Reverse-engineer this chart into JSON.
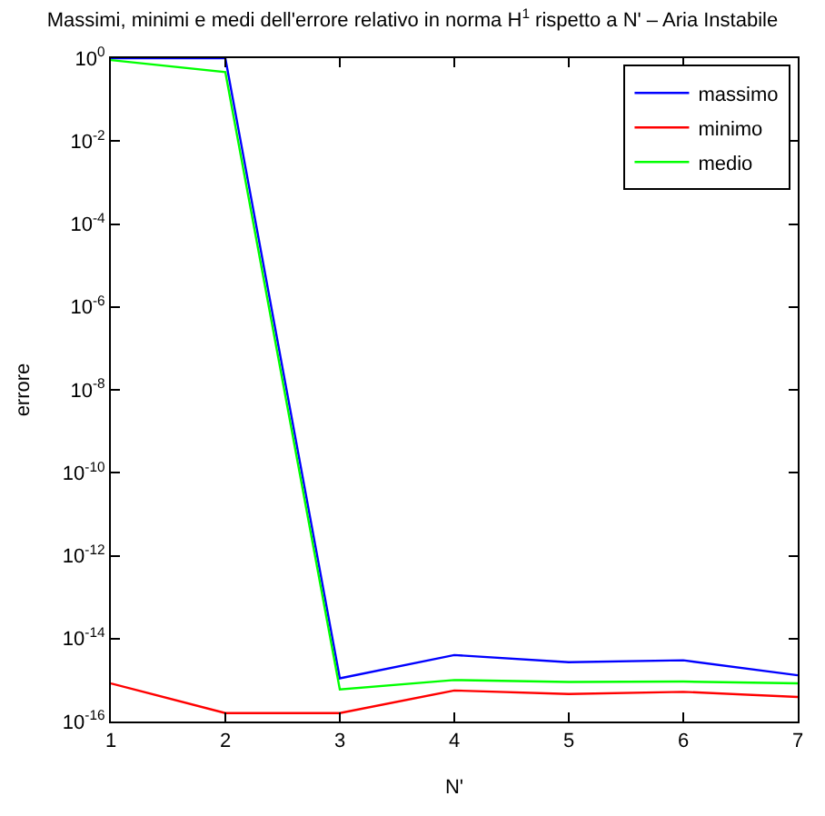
{
  "chart_data": {
    "type": "line",
    "title": "Massimi, minimi e medi dell'errore relativo in norma H$^{1}$ rispetto a N' – Aria Instabile",
    "xlabel": "N'",
    "ylabel": "errore",
    "x": [
      1,
      2,
      3,
      4,
      5,
      6,
      7
    ],
    "series": [
      {
        "name": "massimo",
        "color": "#0000ff",
        "values": [
          1,
          1,
          1.1e-15,
          4e-15,
          2.7e-15,
          3e-15,
          1.3e-15
        ]
      },
      {
        "name": "minimo",
        "color": "#ff0000",
        "values": [
          8.3e-16,
          1.6e-16,
          1.6e-16,
          5.6e-16,
          4.6e-16,
          5.2e-16,
          3.9e-16
        ]
      },
      {
        "name": "medio",
        "color": "#00ff00",
        "values": [
          0.9,
          0.46,
          5.9e-16,
          1e-15,
          9e-16,
          9.2e-16,
          8.3e-16
        ]
      }
    ],
    "log": "y",
    "xlim": [
      1,
      7
    ],
    "xticks": [
      1,
      2,
      3,
      4,
      5,
      6,
      7
    ],
    "ylim": [
      1e-16,
      1
    ],
    "yticks": [
      {
        "value": 1e-16,
        "label": "10$^{-16}$"
      },
      {
        "value": 1e-14,
        "label": "10$^{-14}$"
      },
      {
        "value": 1e-12,
        "label": "10$^{-12}$"
      },
      {
        "value": 1e-10,
        "label": "10$^{-10}$"
      },
      {
        "value": 1e-08,
        "label": "10$^{-8}$"
      },
      {
        "value": 1e-06,
        "label": "10$^{-6}$"
      },
      {
        "value": 0.0001,
        "label": "10$^{-4}$"
      },
      {
        "value": 0.01,
        "label": "10$^{-2}$"
      },
      {
        "value": 1,
        "label": "10$^{0}$"
      }
    ],
    "legend": "top right",
    "marker": "none",
    "line_style": "solid"
  }
}
